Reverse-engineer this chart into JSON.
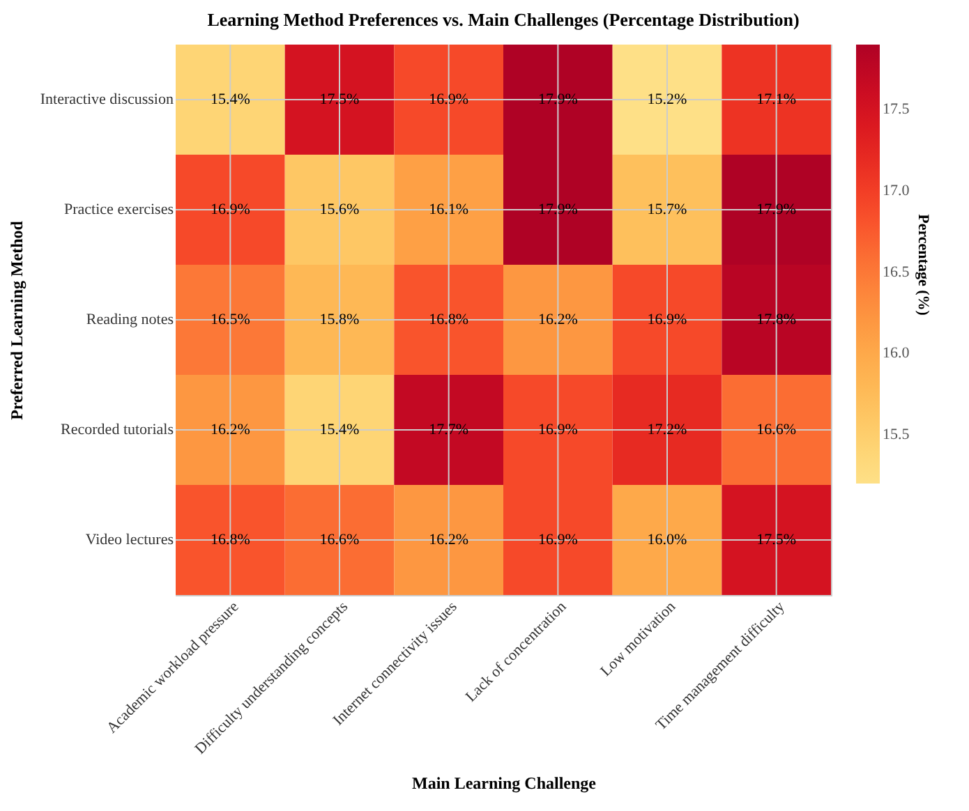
{
  "chart_data": {
    "type": "heatmap",
    "title": "Learning Method Preferences vs. Main Challenges (Percentage Distribution)",
    "xlabel": "Main Learning Challenge",
    "ylabel": "Preferred Learning Method",
    "clabel": "Percentage (%)",
    "categories": [
      "Academic workload pressure",
      "Difficulty understanding concepts",
      "Internet connectivity issues",
      "Lack of concentration",
      "Low motivation",
      "Time management difficulty"
    ],
    "y_categories": [
      "Interactive discussion",
      "Practice exercises",
      "Reading notes",
      "Recorded tutorials",
      "Video lectures"
    ],
    "cells": [
      [
        15.4,
        17.5,
        16.9,
        17.9,
        15.2,
        17.1
      ],
      [
        16.9,
        15.6,
        16.1,
        17.9,
        15.7,
        17.9
      ],
      [
        16.5,
        15.8,
        16.8,
        16.2,
        16.9,
        17.8
      ],
      [
        16.2,
        15.4,
        17.7,
        16.9,
        17.2,
        16.6
      ],
      [
        16.8,
        16.6,
        16.2,
        16.9,
        16.0,
        17.5
      ]
    ],
    "cell_labels": [
      [
        "15.4%",
        "17.5%",
        "16.9%",
        "17.9%",
        "15.2%",
        "17.1%"
      ],
      [
        "16.9%",
        "15.6%",
        "16.1%",
        "17.9%",
        "15.7%",
        "17.9%"
      ],
      [
        "16.5%",
        "15.8%",
        "16.8%",
        "16.2%",
        "16.9%",
        "17.8%"
      ],
      [
        "16.2%",
        "15.4%",
        "17.7%",
        "16.9%",
        "17.2%",
        "16.6%"
      ],
      [
        "16.8%",
        "16.6%",
        "16.2%",
        "16.9%",
        "16.0%",
        "17.5%"
      ]
    ],
    "clim": [
      15.2,
      17.9
    ],
    "cticks": [
      {
        "value": 15.5,
        "label": "15.5"
      },
      {
        "value": 16,
        "label": "16.0"
      },
      {
        "value": 16.5,
        "label": "16.5"
      },
      {
        "value": 17,
        "label": "17.0"
      },
      {
        "value": 17.5,
        "label": "17.5"
      }
    ],
    "grid": true
  }
}
